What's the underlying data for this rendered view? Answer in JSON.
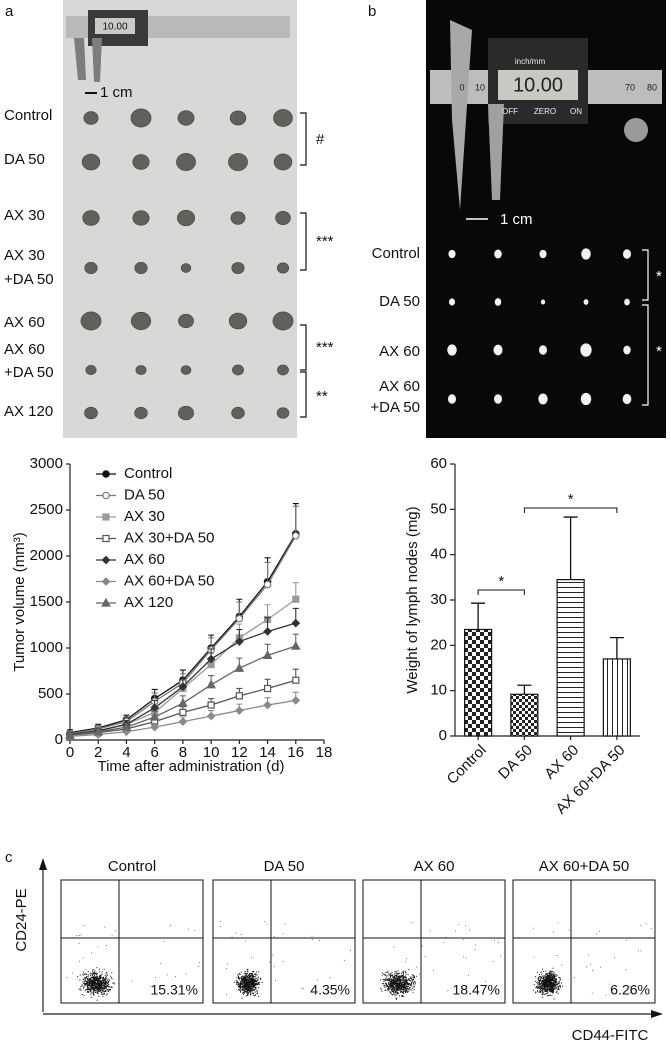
{
  "panel_labels": [
    "a",
    "b",
    "c"
  ],
  "photo_a": {
    "caliper_reading": "10.00",
    "scale_label": "1 cm",
    "row_labels": [
      "Control",
      "DA 50",
      "AX 30",
      "AX 30",
      "+DA 50",
      "AX 60",
      "AX 60",
      "+DA 50",
      "AX 120"
    ],
    "significance": [
      "#",
      "***",
      "***",
      "**"
    ]
  },
  "photo_b": {
    "caliper_reading": "10.00",
    "caliper_labels": [
      "inch/mm",
      "OFF",
      "ZERO",
      "ON"
    ],
    "scale_numbers": [
      "0",
      "10",
      "70",
      "80"
    ],
    "scale_label": "1 cm",
    "row_labels": [
      "Control",
      "DA 50",
      "AX 60",
      "AX 60",
      "+DA 50"
    ],
    "significance": [
      "*",
      "*"
    ]
  },
  "chart_data": [
    {
      "type": "line",
      "x_label": "Time after administration (d)",
      "y_label": "Tumor volume (mm³)",
      "x": [
        0,
        2,
        4,
        6,
        8,
        10,
        12,
        14,
        16
      ],
      "xlim": [
        0,
        18
      ],
      "xticks": [
        0,
        2,
        4,
        6,
        8,
        10,
        12,
        14,
        16,
        18
      ],
      "ylim": [
        0,
        3000
      ],
      "yticks": [
        0,
        500,
        1000,
        1500,
        2000,
        2500,
        3000
      ],
      "series": [
        {
          "name": "Control",
          "color": "#111111",
          "marker": "circle",
          "marker_filled": true,
          "values": [
            80,
            130,
            220,
            450,
            650,
            1000,
            1340,
            1720,
            2240
          ],
          "errors": [
            30,
            40,
            50,
            100,
            110,
            140,
            190,
            260,
            330
          ]
        },
        {
          "name": "DA 50",
          "color": "#777777",
          "marker": "circle",
          "marker_filled": false,
          "values": [
            70,
            120,
            200,
            420,
            620,
            980,
            1320,
            1690,
            2220
          ],
          "errors": [
            30,
            40,
            50,
            90,
            100,
            130,
            180,
            240,
            320
          ]
        },
        {
          "name": "AX 30",
          "color": "#9a9a9a",
          "marker": "square",
          "marker_filled": true,
          "values": [
            60,
            100,
            170,
            300,
            560,
            820,
            1110,
            1310,
            1530
          ],
          "errors": [
            20,
            30,
            40,
            70,
            90,
            120,
            150,
            160,
            180
          ]
        },
        {
          "name": "AX 30+DA 50",
          "color": "#555555",
          "marker": "square",
          "marker_filled": false,
          "values": [
            50,
            80,
            120,
            200,
            300,
            380,
            480,
            560,
            650
          ],
          "errors": [
            20,
            25,
            30,
            50,
            60,
            70,
            80,
            100,
            120
          ]
        },
        {
          "name": "AX 60",
          "color": "#333333",
          "marker": "diamond",
          "marker_filled": true,
          "values": [
            60,
            100,
            170,
            350,
            580,
            880,
            1070,
            1180,
            1270
          ],
          "errors": [
            20,
            30,
            40,
            80,
            100,
            110,
            130,
            150,
            160
          ]
        },
        {
          "name": "AX 60+DA 50",
          "color": "#8a8a8a",
          "marker": "diamond",
          "marker_filled": true,
          "values": [
            40,
            60,
            90,
            140,
            200,
            260,
            320,
            380,
            430
          ],
          "errors": [
            15,
            20,
            25,
            40,
            50,
            60,
            70,
            80,
            90
          ]
        },
        {
          "name": "AX 120",
          "color": "#666666",
          "marker": "triangle",
          "marker_filled": true,
          "values": [
            50,
            90,
            140,
            250,
            400,
            600,
            780,
            920,
            1020
          ],
          "errors": [
            20,
            25,
            35,
            60,
            80,
            100,
            110,
            120,
            130
          ]
        }
      ]
    },
    {
      "type": "bar",
      "y_label": "Weight of lymph nodes  (mg)",
      "categories": [
        "Control",
        "DA 50",
        "AX 60",
        "AX 60+DA 50"
      ],
      "values": [
        23.5,
        9.2,
        34.5,
        17
      ],
      "errors": [
        5.8,
        2,
        13.8,
        4.7
      ],
      "patterns": [
        "checker",
        "checker-small",
        "hlines",
        "vlines"
      ],
      "ylim": [
        0,
        60
      ],
      "yticks": [
        0,
        10,
        20,
        30,
        40,
        50,
        60
      ],
      "annotations": [
        "*",
        "*"
      ]
    }
  ],
  "flow": {
    "x_label": "CD44-FITC",
    "y_label": "CD24-PE",
    "panels": [
      {
        "title": "Control",
        "percent": "15.31%"
      },
      {
        "title": "DA 50",
        "percent": "4.35%"
      },
      {
        "title": "AX 60",
        "percent": "18.47%"
      },
      {
        "title": "AX 60+DA 50",
        "percent": "6.26%"
      }
    ]
  }
}
